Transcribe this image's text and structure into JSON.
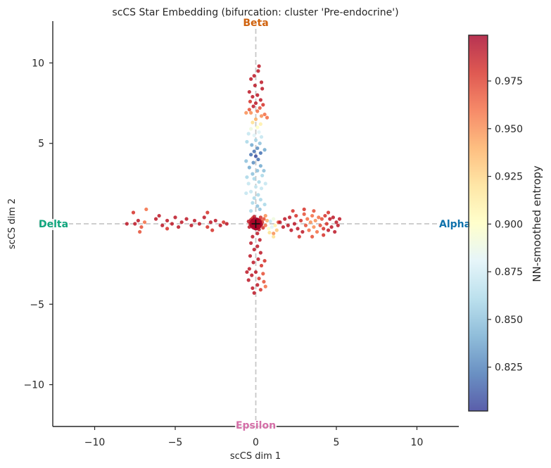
{
  "chart_data": {
    "type": "scatter",
    "title": "scCS Star Embedding  (bifurcation: cluster 'Pre-endocrine')",
    "xlabel": "scCS dim 1",
    "ylabel": "scCS dim 2",
    "xlim": [
      -12.6,
      12.6
    ],
    "ylim": [
      -12.6,
      12.6
    ],
    "xticks": [
      -10,
      -5,
      0,
      5,
      10
    ],
    "yticks": [
      -10,
      -5,
      0,
      5,
      10
    ],
    "xtick_labels": [
      "−10",
      "−5",
      "0",
      "5",
      "10"
    ],
    "ytick_labels": [
      "−10",
      "−5",
      "0",
      "5",
      "10"
    ],
    "grid": false,
    "reference_lines": {
      "x": 0,
      "y": 0,
      "style": "dashed",
      "color": "#c8c8c8"
    },
    "annotations": [
      {
        "text": "Beta",
        "x": 0,
        "y": 12.6,
        "color": "#d0620d"
      },
      {
        "text": "Alpha",
        "x": 12.6,
        "y": 0,
        "color": "#0f72ac"
      },
      {
        "text": "Delta",
        "x": -12.6,
        "y": 0,
        "color": "#10a57d"
      },
      {
        "text": "Epsilon",
        "x": 0,
        "y": -12.6,
        "color": "#d46ea7"
      }
    ],
    "center_marker": {
      "x": 0,
      "y": 0,
      "symbol": "+"
    },
    "colorbar": {
      "label": "NN-smoothed entropy",
      "range": [
        0.802,
        0.999
      ],
      "ticks": [
        0.825,
        0.85,
        0.875,
        0.9,
        0.925,
        0.95,
        0.975
      ],
      "tick_labels": [
        "0.825",
        "0.850",
        "0.875",
        "0.900",
        "0.925",
        "0.950",
        "0.975"
      ],
      "colormap": "RdYlBu_r"
    },
    "branches": [
      {
        "name": "center",
        "points": [
          [
            0.05,
            0.02,
            0.99
          ],
          [
            -0.1,
            0.1,
            0.99
          ],
          [
            0.12,
            -0.08,
            0.99
          ],
          [
            -0.05,
            -0.12,
            0.99
          ],
          [
            0.15,
            0.12,
            0.98
          ],
          [
            -0.15,
            -0.02,
            0.99
          ],
          [
            0.0,
            0.18,
            0.99
          ],
          [
            0.08,
            -0.18,
            0.99
          ],
          [
            -0.2,
            0.15,
            0.98
          ],
          [
            0.22,
            0.05,
            0.99
          ],
          [
            -0.12,
            -0.2,
            0.99
          ],
          [
            0.25,
            -0.15,
            0.98
          ],
          [
            -0.25,
            -0.1,
            0.99
          ],
          [
            0.1,
            0.25,
            0.99
          ],
          [
            0.3,
            0.2,
            0.98
          ],
          [
            -0.3,
            0.25,
            0.99
          ],
          [
            0.35,
            -0.05,
            0.99
          ],
          [
            -0.35,
            0.0,
            0.98
          ],
          [
            0.0,
            -0.3,
            0.99
          ],
          [
            0.4,
            0.1,
            0.98
          ],
          [
            -0.4,
            -0.2,
            0.99
          ],
          [
            0.2,
            -0.35,
            0.99
          ],
          [
            -0.2,
            0.35,
            0.98
          ],
          [
            0.45,
            -0.25,
            0.98
          ],
          [
            -0.1,
            0.45,
            0.99
          ],
          [
            0.3,
            0.4,
            0.98
          ],
          [
            -0.45,
            0.15,
            0.99
          ],
          [
            0.5,
            0.3,
            0.97
          ],
          [
            0.6,
            -0.1,
            0.96
          ],
          [
            0.7,
            0.2,
            0.94
          ],
          [
            0.8,
            -0.3,
            0.9
          ],
          [
            0.9,
            0.15,
            0.87
          ],
          [
            1.0,
            -0.2,
            0.88
          ],
          [
            1.1,
            0.3,
            0.89
          ],
          [
            1.2,
            -0.1,
            0.91
          ],
          [
            1.3,
            -0.4,
            0.93
          ],
          [
            1.1,
            -0.6,
            0.95
          ],
          [
            1.4,
            0.1,
            0.97
          ],
          [
            0.6,
            0.5,
            0.95
          ],
          [
            0.85,
            -0.55,
            0.92
          ]
        ]
      },
      {
        "name": "Beta",
        "points": [
          [
            -0.1,
            9.2,
            0.99
          ],
          [
            0.2,
            9.8,
            0.99
          ],
          [
            0.15,
            9.5,
            0.99
          ],
          [
            -0.3,
            9.0,
            0.99
          ],
          [
            0.35,
            8.8,
            0.99
          ],
          [
            -0.05,
            8.6,
            0.99
          ],
          [
            0.4,
            8.4,
            0.99
          ],
          [
            -0.4,
            8.2,
            0.99
          ],
          [
            0.1,
            8.0,
            0.99
          ],
          [
            -0.2,
            7.9,
            0.99
          ],
          [
            0.3,
            7.7,
            0.99
          ],
          [
            -0.35,
            7.6,
            0.98
          ],
          [
            0.0,
            7.5,
            0.99
          ],
          [
            0.45,
            7.4,
            0.98
          ],
          [
            -0.15,
            7.3,
            0.99
          ],
          [
            0.25,
            7.2,
            0.97
          ],
          [
            -0.4,
            7.1,
            0.97
          ],
          [
            0.1,
            7.0,
            0.96
          ],
          [
            0.55,
            6.8,
            0.96
          ],
          [
            -0.3,
            6.9,
            0.95
          ],
          [
            0.35,
            6.7,
            0.95
          ],
          [
            -0.6,
            6.9,
            0.95
          ],
          [
            0.7,
            6.6,
            0.96
          ],
          [
            0.0,
            6.5,
            0.94
          ],
          [
            -0.2,
            6.3,
            0.92
          ],
          [
            0.3,
            6.2,
            0.91
          ],
          [
            0.1,
            6.0,
            0.9
          ],
          [
            -0.3,
            5.9,
            0.89
          ],
          [
            0.2,
            5.7,
            0.88
          ],
          [
            -0.1,
            5.5,
            0.88
          ],
          [
            0.35,
            5.4,
            0.87
          ],
          [
            -0.45,
            5.6,
            0.87
          ],
          [
            0.0,
            5.2,
            0.86
          ],
          [
            0.25,
            5.0,
            0.85
          ],
          [
            -0.25,
            4.9,
            0.84
          ],
          [
            0.1,
            4.7,
            0.83
          ],
          [
            -0.1,
            4.5,
            0.82
          ],
          [
            0.3,
            4.4,
            0.82
          ],
          [
            0.0,
            4.2,
            0.81
          ],
          [
            -0.3,
            4.3,
            0.82
          ],
          [
            0.15,
            4.0,
            0.82
          ],
          [
            -0.15,
            3.8,
            0.83
          ],
          [
            0.3,
            3.6,
            0.84
          ],
          [
            -0.4,
            3.5,
            0.84
          ],
          [
            0.1,
            3.3,
            0.85
          ],
          [
            -0.2,
            3.1,
            0.85
          ],
          [
            0.4,
            3.0,
            0.86
          ],
          [
            -0.1,
            2.8,
            0.86
          ],
          [
            0.2,
            2.6,
            0.86
          ],
          [
            -0.45,
            2.5,
            0.87
          ],
          [
            0.0,
            2.3,
            0.87
          ],
          [
            0.35,
            2.2,
            0.87
          ],
          [
            -0.3,
            2.0,
            0.87
          ],
          [
            0.15,
            1.8,
            0.86
          ],
          [
            -0.1,
            1.6,
            0.86
          ],
          [
            0.3,
            1.5,
            0.86
          ],
          [
            -0.2,
            1.3,
            0.86
          ],
          [
            0.1,
            1.1,
            0.85
          ],
          [
            0.25,
            0.9,
            0.85
          ],
          [
            -0.3,
            0.8,
            0.86
          ],
          [
            -0.55,
            5.1,
            0.86
          ],
          [
            0.55,
            4.6,
            0.84
          ],
          [
            -0.6,
            3.9,
            0.85
          ],
          [
            0.5,
            3.3,
            0.85
          ],
          [
            -0.55,
            2.9,
            0.86
          ],
          [
            0.6,
            2.5,
            0.87
          ],
          [
            -0.6,
            1.9,
            0.87
          ],
          [
            0.55,
            1.2,
            0.86
          ]
        ]
      },
      {
        "name": "Alpha",
        "points": [
          [
            1.5,
            0.1,
            0.99
          ],
          [
            1.7,
            -0.2,
            0.99
          ],
          [
            1.8,
            0.3,
            0.99
          ],
          [
            2.0,
            -0.1,
            0.99
          ],
          [
            2.1,
            0.4,
            0.99
          ],
          [
            2.2,
            -0.4,
            0.99
          ],
          [
            2.4,
            0.0,
            0.99
          ],
          [
            2.5,
            0.5,
            0.98
          ],
          [
            2.6,
            -0.3,
            0.99
          ],
          [
            2.8,
            0.2,
            0.98
          ],
          [
            2.9,
            -0.5,
            0.99
          ],
          [
            3.0,
            0.6,
            0.97
          ],
          [
            3.1,
            -0.1,
            0.97
          ],
          [
            3.2,
            0.3,
            0.96
          ],
          [
            3.3,
            -0.4,
            0.96
          ],
          [
            3.4,
            0.1,
            0.95
          ],
          [
            3.5,
            0.5,
            0.96
          ],
          [
            3.6,
            -0.2,
            0.95
          ],
          [
            3.7,
            0.2,
            0.95
          ],
          [
            3.8,
            -0.5,
            0.96
          ],
          [
            3.9,
            0.4,
            0.96
          ],
          [
            4.0,
            -0.1,
            0.97
          ],
          [
            4.1,
            0.3,
            0.97
          ],
          [
            4.2,
            -0.3,
            0.98
          ],
          [
            4.3,
            0.5,
            0.98
          ],
          [
            4.4,
            0.0,
            0.98
          ],
          [
            4.5,
            -0.4,
            0.99
          ],
          [
            4.6,
            0.3,
            0.99
          ],
          [
            4.7,
            -0.2,
            0.99
          ],
          [
            4.8,
            0.4,
            0.99
          ],
          [
            4.9,
            -0.5,
            0.99
          ],
          [
            5.0,
            0.1,
            0.99
          ],
          [
            5.1,
            -0.1,
            0.99
          ],
          [
            5.2,
            0.3,
            0.99
          ],
          [
            2.3,
            0.8,
            0.98
          ],
          [
            3.0,
            0.9,
            0.98
          ],
          [
            3.6,
            0.8,
            0.97
          ],
          [
            4.5,
            0.7,
            0.98
          ],
          [
            2.7,
            -0.8,
            0.98
          ],
          [
            3.5,
            -0.8,
            0.97
          ],
          [
            4.2,
            -0.7,
            0.98
          ],
          [
            1.1,
            -0.8,
            0.92
          ]
        ]
      },
      {
        "name": "Delta",
        "points": [
          [
            -7.5,
            0.0,
            0.99
          ],
          [
            -7.3,
            0.2,
            0.99
          ],
          [
            -7.1,
            -0.2,
            0.97
          ],
          [
            -6.9,
            0.1,
            0.96
          ],
          [
            -7.2,
            -0.5,
            0.97
          ],
          [
            -6.8,
            0.9,
            0.96
          ],
          [
            -7.6,
            0.7,
            0.98
          ],
          [
            -6.2,
            0.3,
            0.99
          ],
          [
            -5.8,
            -0.1,
            0.99
          ],
          [
            -5.5,
            0.2,
            0.99
          ],
          [
            -5.2,
            0.0,
            0.99
          ],
          [
            -5.0,
            0.4,
            0.99
          ],
          [
            -4.8,
            -0.2,
            0.99
          ],
          [
            -4.6,
            0.1,
            0.99
          ],
          [
            -4.3,
            0.3,
            0.99
          ],
          [
            -4.0,
            -0.1,
            0.99
          ],
          [
            -3.8,
            0.2,
            0.99
          ],
          [
            -3.5,
            0.0,
            0.99
          ],
          [
            -3.2,
            0.4,
            0.99
          ],
          [
            -3.0,
            -0.2,
            0.98
          ],
          [
            -2.8,
            0.1,
            0.99
          ],
          [
            -2.5,
            0.2,
            0.99
          ],
          [
            -2.2,
            -0.1,
            0.99
          ],
          [
            -2.0,
            0.1,
            0.98
          ],
          [
            -1.8,
            0.0,
            0.99
          ],
          [
            -3.0,
            0.7,
            0.98
          ],
          [
            -2.7,
            -0.4,
            0.98
          ],
          [
            -5.5,
            -0.3,
            0.98
          ],
          [
            -6.0,
            0.5,
            0.99
          ],
          [
            -8.0,
            0.0,
            0.99
          ]
        ]
      },
      {
        "name": "Epsilon",
        "points": [
          [
            0.1,
            -0.6,
            0.99
          ],
          [
            -0.2,
            -0.8,
            0.99
          ],
          [
            0.25,
            -1.0,
            0.99
          ],
          [
            -0.3,
            -1.2,
            0.99
          ],
          [
            0.1,
            -1.4,
            0.99
          ],
          [
            -0.1,
            -1.6,
            0.99
          ],
          [
            0.3,
            -1.8,
            0.99
          ],
          [
            -0.35,
            -2.0,
            0.99
          ],
          [
            0.15,
            -2.2,
            0.99
          ],
          [
            -0.15,
            -2.4,
            0.99
          ],
          [
            0.35,
            -2.6,
            0.98
          ],
          [
            -0.4,
            -2.8,
            0.99
          ],
          [
            0.0,
            -3.0,
            0.99
          ],
          [
            0.45,
            -3.1,
            0.97
          ],
          [
            -0.25,
            -3.2,
            0.99
          ],
          [
            0.2,
            -3.4,
            0.98
          ],
          [
            -0.45,
            -3.5,
            0.99
          ],
          [
            0.5,
            -3.6,
            0.97
          ],
          [
            0.1,
            -3.8,
            0.99
          ],
          [
            -0.2,
            -4.0,
            0.99
          ],
          [
            0.3,
            -4.1,
            0.98
          ],
          [
            -0.1,
            -4.3,
            0.99
          ],
          [
            0.55,
            -2.3,
            0.98
          ],
          [
            -0.55,
            -3.0,
            0.99
          ],
          [
            0.6,
            -3.9,
            0.96
          ]
        ]
      }
    ]
  }
}
